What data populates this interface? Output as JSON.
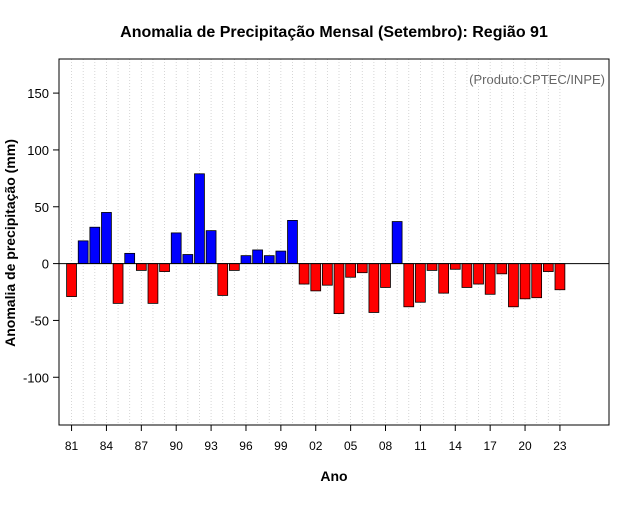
{
  "chart_data": {
    "type": "bar",
    "title": "Anomalia de Precipitação Mensal (Setembro): Região 91",
    "xlabel": "Ano",
    "ylabel": "Anomalia de precipitação (mm)",
    "annotation": "(Produto:CPTEC/INPE)",
    "ylim": [
      -142,
      180
    ],
    "yticks": [
      -100,
      -50,
      0,
      50,
      100,
      150
    ],
    "xtick_labels": [
      "81",
      "84",
      "87",
      "90",
      "93",
      "96",
      "99",
      "02",
      "05",
      "08",
      "11",
      "14",
      "17",
      "20",
      "23"
    ],
    "categories": [
      "81",
      "82",
      "83",
      "84",
      "85",
      "86",
      "87",
      "88",
      "89",
      "90",
      "91",
      "92",
      "93",
      "94",
      "95",
      "96",
      "97",
      "98",
      "99",
      "00",
      "01",
      "02",
      "03",
      "04",
      "05",
      "06",
      "07",
      "08",
      "09",
      "10",
      "11",
      "12",
      "13",
      "14",
      "15",
      "16",
      "17",
      "18",
      "19",
      "20",
      "21",
      "22",
      "23"
    ],
    "values": [
      -29,
      20,
      32,
      45,
      -35,
      9,
      -6,
      -35,
      -7,
      27,
      8,
      79,
      29,
      -28,
      -6,
      7,
      12,
      7,
      11,
      38,
      -18,
      -24,
      -19,
      -44,
      -12,
      -8,
      -43,
      -21,
      37,
      -38,
      -34,
      -6,
      -26,
      -5,
      -21,
      -18,
      -27,
      -9,
      -38,
      -31,
      -30,
      -7,
      -23
    ],
    "positive_color": "#0000ff",
    "negative_color": "#ff0000"
  }
}
